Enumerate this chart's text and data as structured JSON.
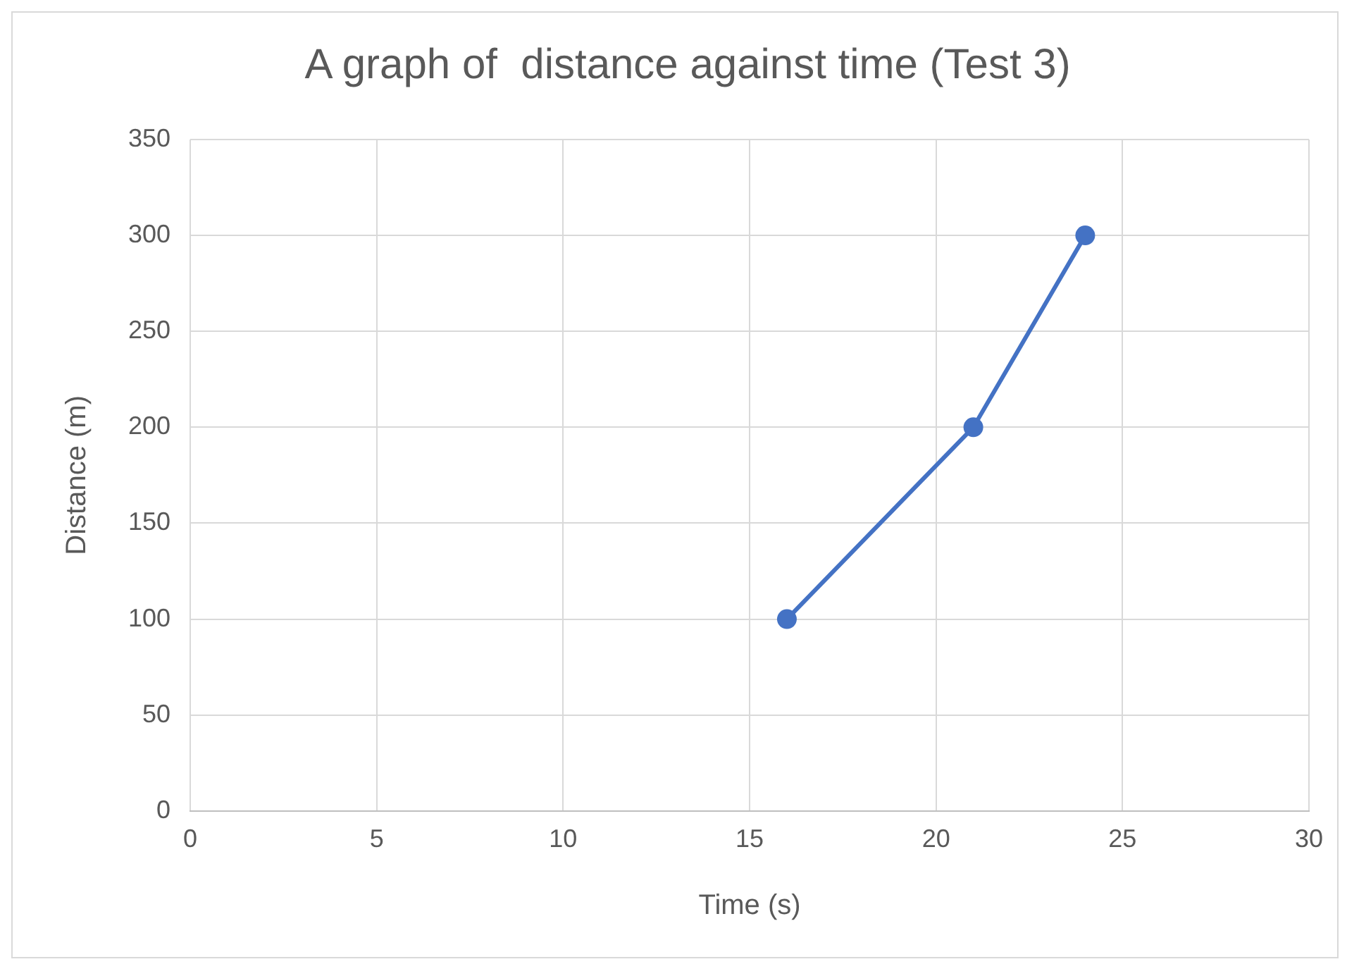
{
  "chart_data": {
    "type": "line",
    "title": "A graph of  distance against time (Test 3)",
    "xlabel": "Time (s)",
    "ylabel": "Distance (m)",
    "x": [
      16,
      21,
      24
    ],
    "series": [
      {
        "color": "#4472c4",
        "values": [
          100,
          200,
          300
        ]
      }
    ],
    "xlim": [
      0,
      30
    ],
    "xticks": [
      0,
      5,
      10,
      15,
      20,
      25,
      30
    ],
    "ylim": [
      0,
      350
    ],
    "yticks": [
      0,
      50,
      100,
      150,
      200,
      250,
      300,
      350
    ],
    "grid": true,
    "legend": false,
    "marker": "circle",
    "line_style": "solid"
  }
}
